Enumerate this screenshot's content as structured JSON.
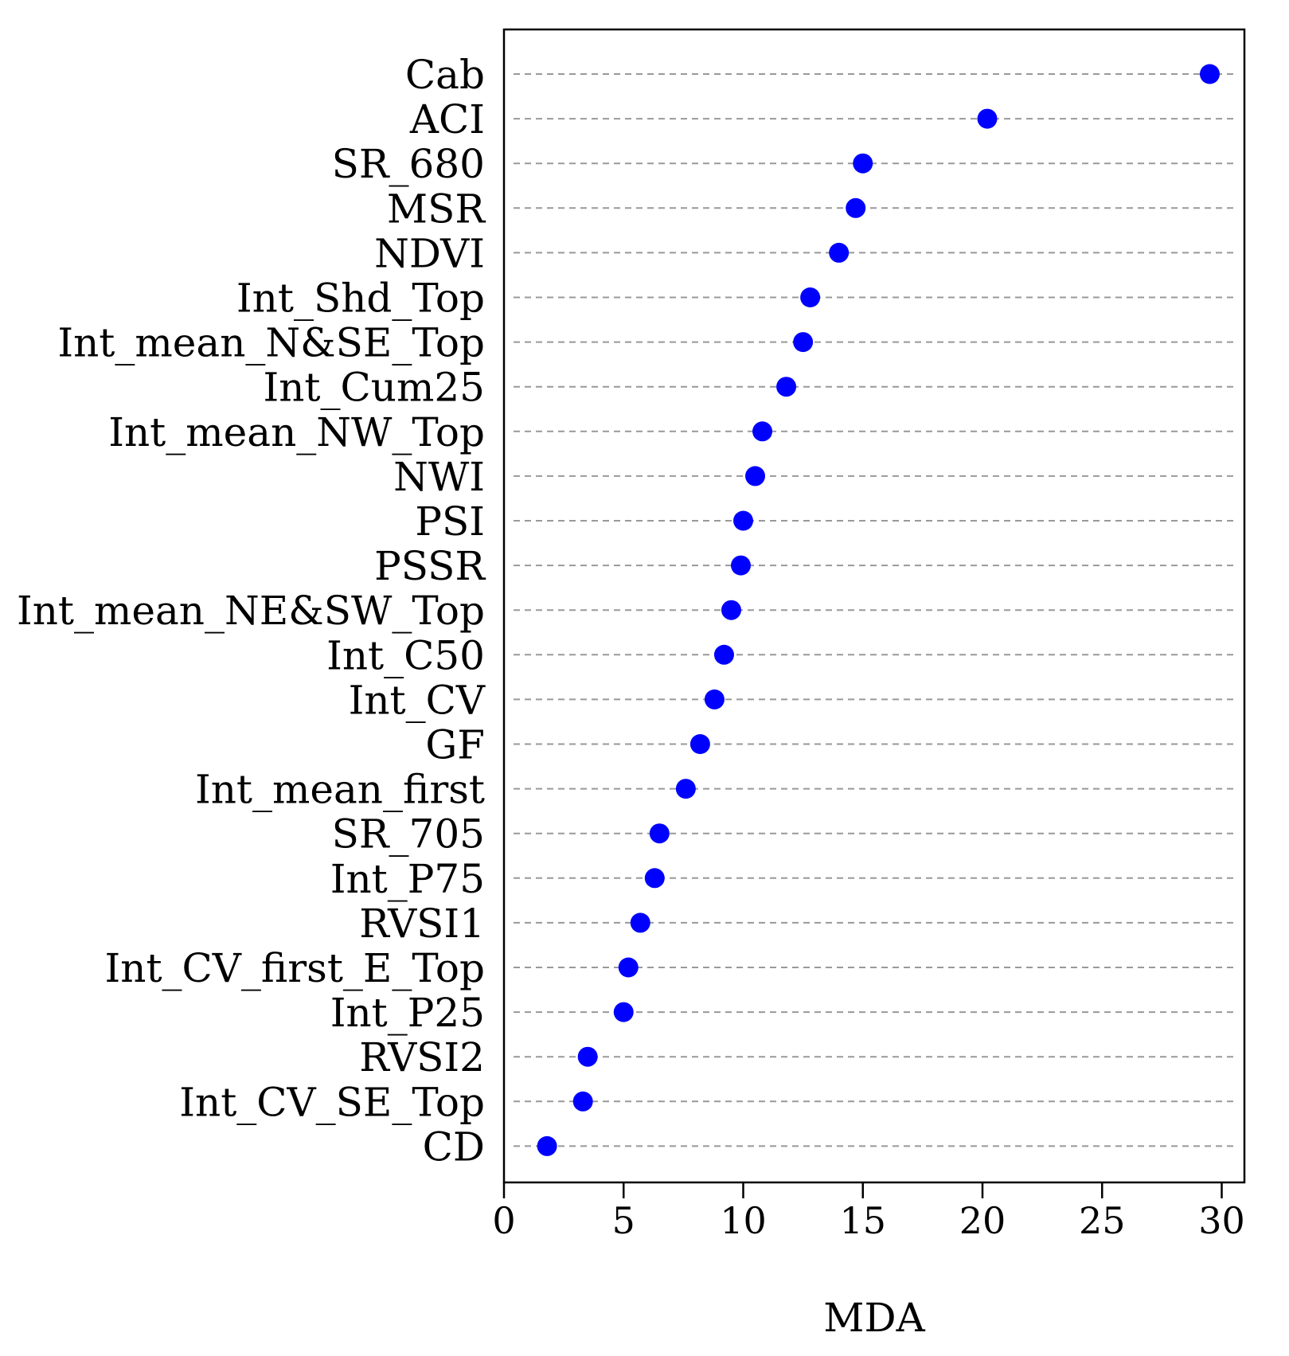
{
  "chart_data": {
    "type": "scatter",
    "title": "",
    "xlabel": "MDA",
    "ylabel": "",
    "xlim": [
      0,
      31
    ],
    "xticks": [
      0,
      5,
      10,
      15,
      20,
      25,
      30
    ],
    "grid": "horizontal dashed",
    "marker_color": "#0000ff",
    "categories": [
      "Cab",
      "ACI",
      "SR_680",
      "MSR",
      "NDVI",
      "Int_Shd_Top",
      "Int_mean_N&SE_Top",
      "Int_Cum25",
      "Int_mean_NW_Top",
      "NWI",
      "PSI",
      "PSSR",
      "Int_mean_NE&SW_Top",
      "Int_C50",
      "Int_CV",
      "GF",
      "Int_mean_first",
      "SR_705",
      "Int_P75",
      "RVSI1",
      "Int_CV_first_E_Top",
      "Int_P25",
      "RVSI2",
      "Int_CV_SE_Top",
      "CD"
    ],
    "values": [
      29.5,
      20.2,
      15.0,
      14.7,
      14.0,
      12.8,
      12.5,
      11.8,
      10.8,
      10.5,
      10.0,
      9.9,
      9.5,
      9.2,
      8.8,
      8.2,
      7.6,
      6.5,
      6.3,
      5.7,
      5.2,
      5.0,
      3.5,
      3.3,
      1.8
    ]
  }
}
